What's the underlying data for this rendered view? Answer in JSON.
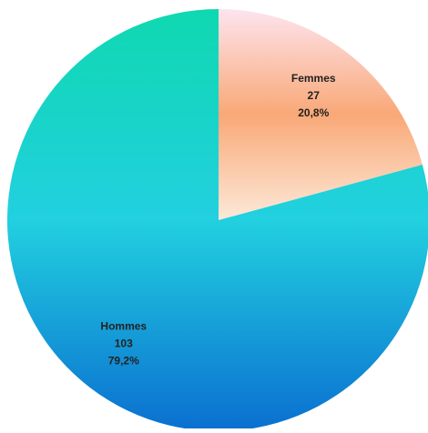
{
  "chart_data": {
    "type": "pie",
    "categories": [
      "Femmes",
      "Hommes"
    ],
    "values": [
      27,
      103
    ],
    "percent_labels": [
      "20,8%",
      "79,2%"
    ],
    "colors": [
      [
        "#fde4ee",
        "#f9a877",
        "#fde9d9"
      ],
      [
        "#0fd8b0",
        "#22d0e0",
        "#0a6fd0"
      ]
    ]
  }
}
